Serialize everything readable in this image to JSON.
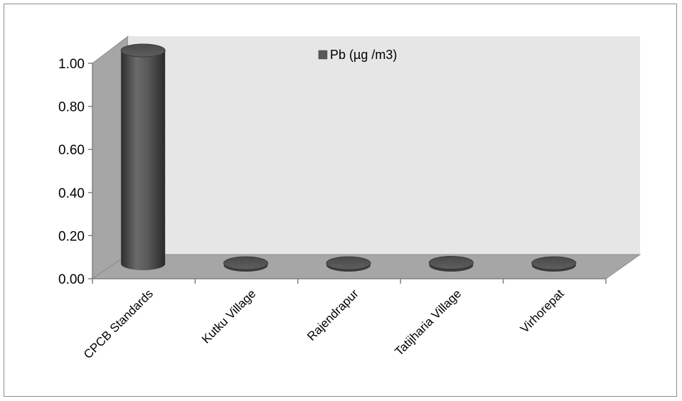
{
  "chart_data": {
    "type": "bar",
    "style": "3d-cylinder",
    "categories": [
      "CPCB Standards",
      "Kutku Village",
      "Rajendrapur",
      "Tatijharia Village",
      "Virhorepat"
    ],
    "series": [
      {
        "name": "Pb (µg /m3)",
        "values": [
          1.0,
          0.003,
          0.003,
          0.005,
          0.003
        ]
      }
    ],
    "ylim": [
      0,
      1.0
    ],
    "yticks": [
      "0.00",
      "0.20",
      "0.40",
      "0.60",
      "0.80",
      "1.00"
    ],
    "grid": false,
    "legend_position": "top-center",
    "colors": {
      "bar": "#595959",
      "back_wall": "#e6e6e6",
      "side_wall": "#a6a6a6",
      "floor": "#a6a6a6"
    }
  }
}
